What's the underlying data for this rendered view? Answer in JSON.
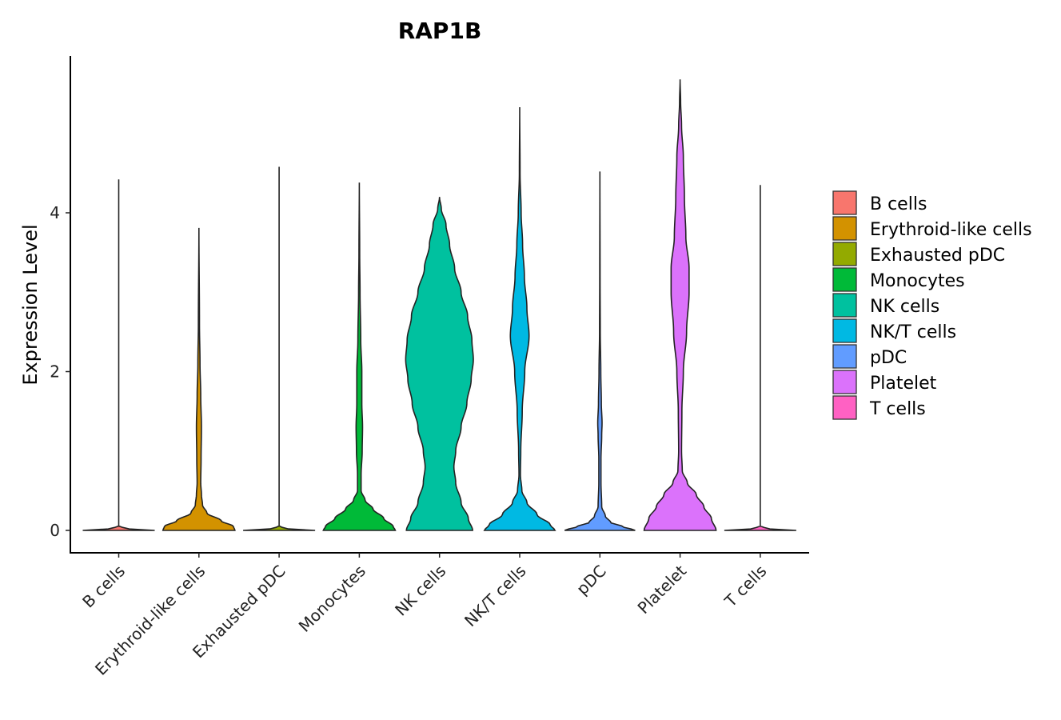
{
  "chart_data": {
    "type": "violin",
    "title": "RAP1B",
    "xlabel": "",
    "ylabel": "Expression Level",
    "ylim": [
      -0.28,
      5.95
    ],
    "yticks": [
      0,
      2,
      4
    ],
    "legend_position": "right",
    "categories": [
      "B cells",
      "Erythroid-like cells",
      "Exhausted pDC",
      "Monocytes",
      "NK cells",
      "NK/T cells",
      "pDC",
      "Platelet",
      "T cells"
    ],
    "colors": [
      "#F8766D",
      "#D39200",
      "#93AA00",
      "#00BA38",
      "#00C19F",
      "#00B9E3",
      "#619CFF",
      "#DB72FB",
      "#FF61C3"
    ],
    "series": [
      {
        "name": "B cells",
        "max": 4.42,
        "profile": [
          [
            0,
            1.0
          ],
          [
            0.02,
            0.28
          ],
          [
            0.05,
            0.0
          ],
          [
            4.42,
            0.0
          ]
        ]
      },
      {
        "name": "Erythroid-like cells",
        "max": 3.81,
        "profile": [
          [
            0,
            1.0
          ],
          [
            0.05,
            0.96
          ],
          [
            0.12,
            0.62
          ],
          [
            0.22,
            0.22
          ],
          [
            0.32,
            0.1
          ],
          [
            0.45,
            0.07
          ],
          [
            0.6,
            0.05
          ],
          [
            0.9,
            0.06
          ],
          [
            1.3,
            0.07
          ],
          [
            1.7,
            0.05
          ],
          [
            2.1,
            0.03
          ],
          [
            2.6,
            0.015
          ],
          [
            3.81,
            0.0
          ]
        ]
      },
      {
        "name": "Exhausted pDC",
        "max": 4.58,
        "profile": [
          [
            0,
            1.0
          ],
          [
            0.02,
            0.25
          ],
          [
            0.05,
            0.0
          ],
          [
            4.58,
            0.0
          ]
        ]
      },
      {
        "name": "Monocytes",
        "max": 4.38,
        "profile": [
          [
            0,
            1.0
          ],
          [
            0.05,
            0.94
          ],
          [
            0.15,
            0.68
          ],
          [
            0.27,
            0.38
          ],
          [
            0.38,
            0.16
          ],
          [
            0.5,
            0.05
          ],
          [
            0.7,
            0.05
          ],
          [
            1.0,
            0.08
          ],
          [
            1.3,
            0.09
          ],
          [
            1.6,
            0.07
          ],
          [
            2.0,
            0.07
          ],
          [
            2.4,
            0.04
          ],
          [
            3.0,
            0.02
          ],
          [
            3.5,
            0.01
          ],
          [
            4.38,
            0.0
          ]
        ]
      },
      {
        "name": "NK cells",
        "max": 4.2,
        "profile": [
          [
            0,
            0.92
          ],
          [
            0.15,
            0.8
          ],
          [
            0.35,
            0.6
          ],
          [
            0.6,
            0.45
          ],
          [
            0.8,
            0.4
          ],
          [
            1.0,
            0.45
          ],
          [
            1.3,
            0.6
          ],
          [
            1.6,
            0.76
          ],
          [
            1.9,
            0.88
          ],
          [
            2.15,
            0.94
          ],
          [
            2.4,
            0.9
          ],
          [
            2.7,
            0.78
          ],
          [
            3.0,
            0.6
          ],
          [
            3.3,
            0.42
          ],
          [
            3.6,
            0.28
          ],
          [
            3.85,
            0.18
          ],
          [
            4.05,
            0.05
          ],
          [
            4.2,
            0.0
          ]
        ]
      },
      {
        "name": "NK/T cells",
        "max": 5.33,
        "profile": [
          [
            0,
            0.98
          ],
          [
            0.07,
            0.85
          ],
          [
            0.2,
            0.48
          ],
          [
            0.35,
            0.2
          ],
          [
            0.5,
            0.06
          ],
          [
            0.7,
            0.02
          ],
          [
            1.0,
            0.03
          ],
          [
            1.5,
            0.07
          ],
          [
            2.0,
            0.14
          ],
          [
            2.45,
            0.26
          ],
          [
            2.8,
            0.2
          ],
          [
            3.2,
            0.13
          ],
          [
            3.6,
            0.08
          ],
          [
            4.0,
            0.04
          ],
          [
            4.5,
            0.01
          ],
          [
            5.33,
            0.0
          ]
        ]
      },
      {
        "name": "pDC",
        "max": 4.52,
        "profile": [
          [
            0,
            0.98
          ],
          [
            0.05,
            0.62
          ],
          [
            0.1,
            0.3
          ],
          [
            0.18,
            0.15
          ],
          [
            0.3,
            0.05
          ],
          [
            0.6,
            0.03
          ],
          [
            0.9,
            0.03
          ],
          [
            1.2,
            0.05
          ],
          [
            1.35,
            0.06
          ],
          [
            1.6,
            0.04
          ],
          [
            2.0,
            0.025
          ],
          [
            2.5,
            0.01
          ],
          [
            3.2,
            0.005
          ],
          [
            4.52,
            0.0
          ]
        ]
      },
      {
        "name": "Platelet",
        "max": 5.68,
        "profile": [
          [
            0,
            1.0
          ],
          [
            0.15,
            0.87
          ],
          [
            0.3,
            0.66
          ],
          [
            0.45,
            0.45
          ],
          [
            0.6,
            0.2
          ],
          [
            0.75,
            0.06
          ],
          [
            1.0,
            0.04
          ],
          [
            1.5,
            0.05
          ],
          [
            2.0,
            0.09
          ],
          [
            2.5,
            0.18
          ],
          [
            3.0,
            0.25
          ],
          [
            3.3,
            0.25
          ],
          [
            3.7,
            0.16
          ],
          [
            4.2,
            0.12
          ],
          [
            4.7,
            0.09
          ],
          [
            5.1,
            0.04
          ],
          [
            5.4,
            0.015
          ],
          [
            5.68,
            0.0
          ]
        ]
      },
      {
        "name": "T cells",
        "max": 4.35,
        "profile": [
          [
            0,
            1.0
          ],
          [
            0.02,
            0.25
          ],
          [
            0.05,
            0.0
          ],
          [
            4.35,
            0.0
          ]
        ]
      }
    ]
  }
}
